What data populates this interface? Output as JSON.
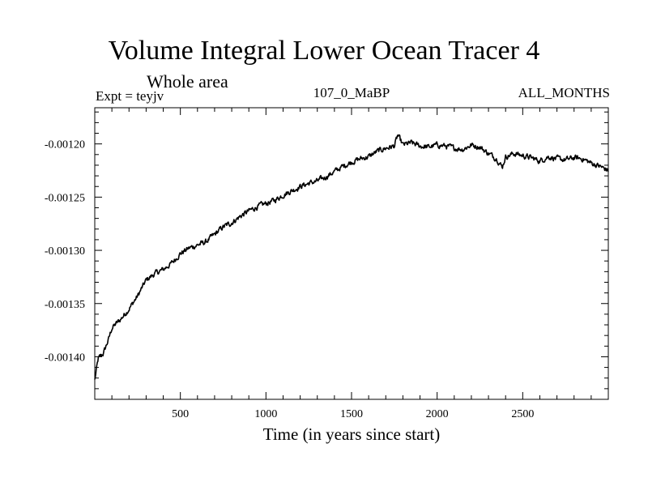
{
  "chart_data": {
    "type": "line",
    "title": "Volume Integral Lower Ocean Tracer 4",
    "subtitle": "Whole area",
    "experiment_label": "Expt = teyjv",
    "period_label": "107_0_MaBP",
    "months_label": "ALL_MONTHS",
    "xlabel": "Time (in years since start)",
    "ylabel": "",
    "xlim": [
      0,
      3000
    ],
    "ylim": [
      -0.00144,
      -0.001166
    ],
    "xticks": [
      500,
      1000,
      1500,
      2000,
      2500
    ],
    "xtick_labels": [
      "500",
      "1000",
      "1500",
      "2000",
      "2500"
    ],
    "yticks": [
      -0.0012,
      -0.00125,
      -0.0013,
      -0.00135,
      -0.0014
    ],
    "ytick_labels": [
      "-0.00120",
      "-0.00125",
      "-0.00130",
      "-0.00135",
      "-0.00140"
    ],
    "series": [
      {
        "name": "Volume Integral Lower Ocean Tracer 4",
        "color": "#000000",
        "x": [
          0,
          20,
          50,
          80,
          100,
          150,
          200,
          250,
          300,
          350,
          400,
          450,
          500,
          550,
          600,
          650,
          700,
          750,
          800,
          850,
          900,
          950,
          1000,
          1050,
          1100,
          1150,
          1200,
          1250,
          1300,
          1350,
          1400,
          1450,
          1500,
          1550,
          1600,
          1650,
          1700,
          1750,
          1770,
          1800,
          1850,
          1900,
          1950,
          2000,
          2050,
          2100,
          2150,
          2200,
          2250,
          2300,
          2350,
          2380,
          2400,
          2450,
          2500,
          2550,
          2600,
          2650,
          2700,
          2750,
          2800,
          2850,
          2900,
          2950,
          3000
        ],
        "y": [
          -0.001422,
          -0.001402,
          -0.001397,
          -0.001384,
          -0.001373,
          -0.001365,
          -0.001355,
          -0.001343,
          -0.001328,
          -0.001322,
          -0.001318,
          -0.001312,
          -0.001303,
          -0.001298,
          -0.001295,
          -0.001292,
          -0.001285,
          -0.001278,
          -0.001274,
          -0.001268,
          -0.001263,
          -0.001259,
          -0.001256,
          -0.001253,
          -0.001248,
          -0.001244,
          -0.00124,
          -0.001237,
          -0.001235,
          -0.001231,
          -0.001226,
          -0.001221,
          -0.001217,
          -0.001214,
          -0.001212,
          -0.001207,
          -0.001204,
          -0.001202,
          -0.001192,
          -0.001201,
          -0.001199,
          -0.001202,
          -0.001203,
          -0.001201,
          -0.001202,
          -0.001204,
          -0.001205,
          -0.001201,
          -0.001203,
          -0.001209,
          -0.001214,
          -0.001222,
          -0.001212,
          -0.001209,
          -0.001211,
          -0.001213,
          -0.001216,
          -0.001212,
          -0.001214,
          -0.001215,
          -0.001213,
          -0.001214,
          -0.001218,
          -0.001221,
          -0.001225
        ]
      }
    ]
  }
}
